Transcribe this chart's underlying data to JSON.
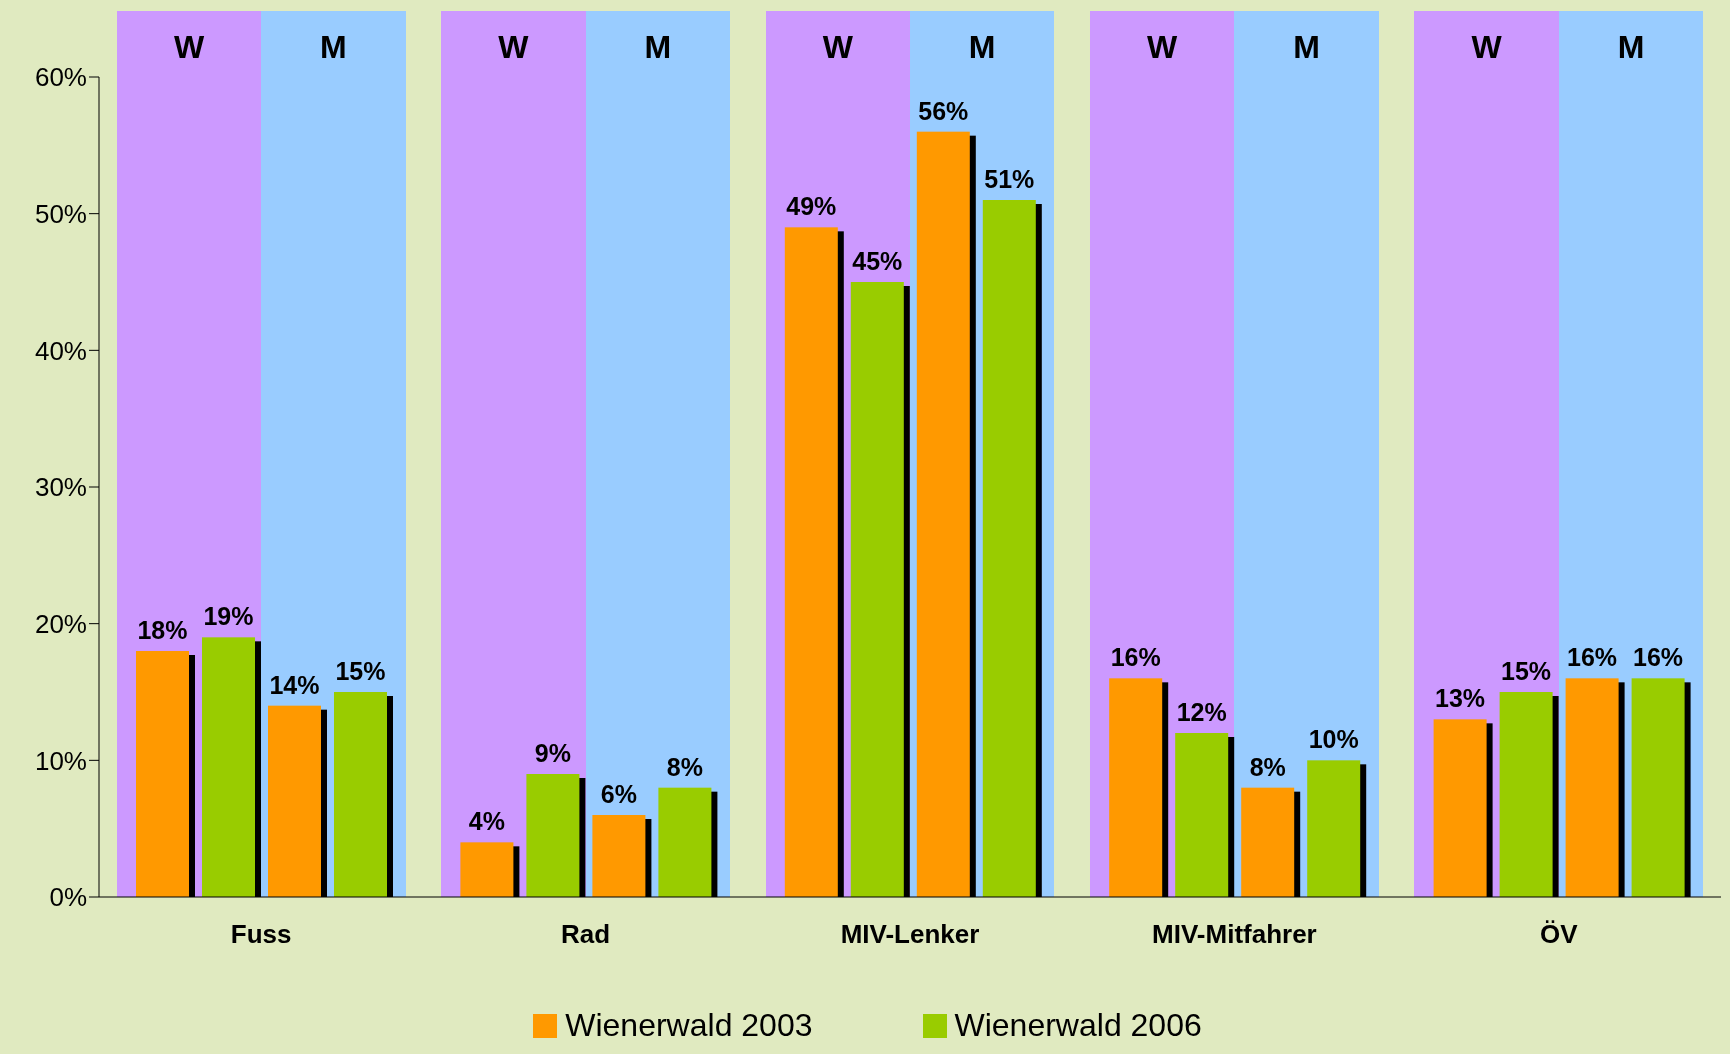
{
  "chart_data": {
    "type": "bar",
    "categories": [
      "Fuss",
      "Rad",
      "MIV-Lenker",
      "MIV-Mitfahrer",
      "ÖV"
    ],
    "series": [
      {
        "name": "Wienerwald 2003",
        "color": "#ff9900",
        "values": [
          18,
          4,
          49,
          16,
          13
        ],
        "value_labels": [
          "18%",
          "4%",
          "49%",
          "16%",
          "13%"
        ]
      },
      {
        "name": "Wienerwald 2006",
        "color": "#99cc00",
        "values": [
          19,
          9,
          45,
          12,
          15
        ],
        "value_labels": [
          "19%",
          "9%",
          "45%",
          "12%",
          "15%"
        ]
      },
      {
        "color": "#ff9900",
        "values": [
          14,
          6,
          56,
          8,
          16
        ],
        "value_labels": [
          "14%",
          "6%",
          "56%",
          "8%",
          "16%"
        ]
      },
      {
        "color": "#99cc00",
        "values": [
          15,
          8,
          51,
          10,
          16
        ],
        "value_labels": [
          "15%",
          "8%",
          "51%",
          "10%",
          "16%"
        ]
      }
    ],
    "ylim": [
      0,
      60
    ],
    "yticks": [
      {
        "value": 0,
        "label": "0%"
      },
      {
        "value": 10,
        "label": "10%"
      },
      {
        "value": 20,
        "label": "20%"
      },
      {
        "value": 30,
        "label": "30%"
      },
      {
        "value": 40,
        "label": "40%"
      },
      {
        "value": 50,
        "label": "50%"
      },
      {
        "value": 60,
        "label": "60%"
      }
    ],
    "bands": [
      {
        "axis": "x",
        "from": "Fuss",
        "to": "Fuss",
        "label": "W",
        "color": "#cc99ff"
      },
      {
        "axis": "x",
        "from": "Fuss",
        "to": "Fuss",
        "label": "M",
        "color": "#99ccff"
      },
      {
        "axis": "x",
        "from": "Rad",
        "to": "Rad",
        "label": "W",
        "color": "#cc99ff"
      },
      {
        "axis": "x",
        "from": "Rad",
        "to": "Rad",
        "label": "M",
        "color": "#99ccff"
      },
      {
        "axis": "x",
        "from": "MIV-Lenker",
        "to": "MIV-Lenker",
        "label": "W",
        "color": "#cc99ff"
      },
      {
        "axis": "x",
        "from": "MIV-Lenker",
        "to": "MIV-Lenker",
        "label": "M",
        "color": "#99ccff"
      },
      {
        "axis": "x",
        "from": "MIV-Mitfahrer",
        "to": "MIV-Mitfahrer",
        "label": "W",
        "color": "#cc99ff"
      },
      {
        "axis": "x",
        "from": "MIV-Mitfahrer",
        "to": "MIV-Mitfahrer",
        "label": "M",
        "color": "#99ccff"
      },
      {
        "axis": "x",
        "from": "ÖV",
        "to": "ÖV",
        "label": "W",
        "color": "#cc99ff"
      },
      {
        "axis": "x",
        "from": "ÖV",
        "to": "ÖV",
        "label": "M",
        "color": "#99ccff"
      }
    ],
    "grid": false,
    "legend": "bottom"
  }
}
